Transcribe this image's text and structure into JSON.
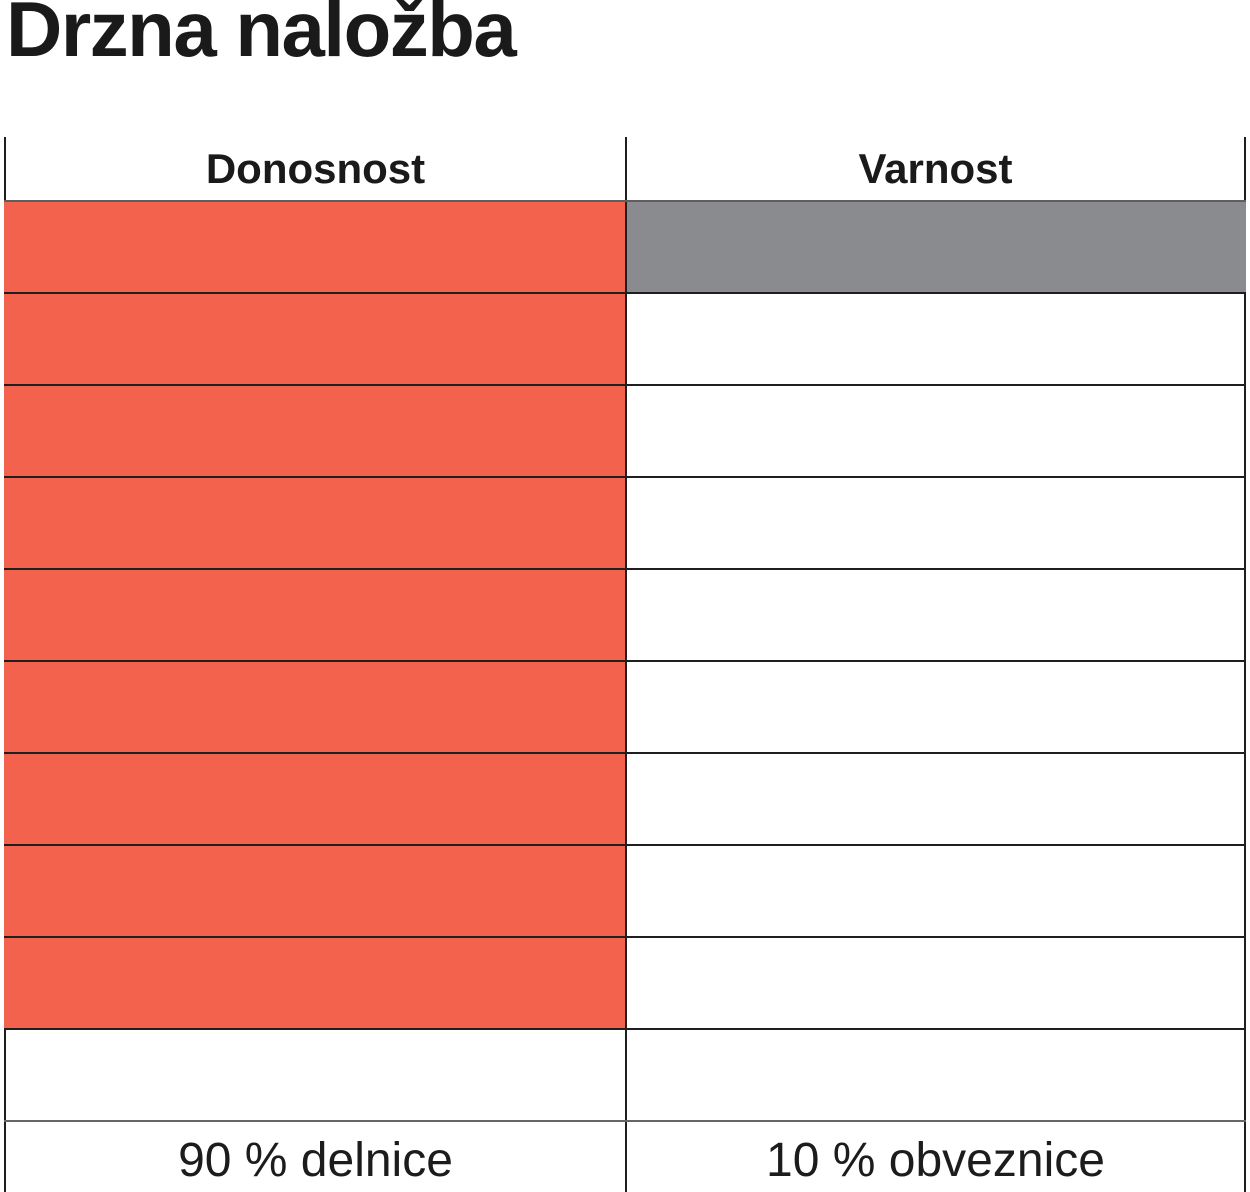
{
  "title": "Drzna naložba",
  "table": {
    "total_rows": 10,
    "columns": [
      {
        "header": "Donosnost",
        "footer_label": "90 % delnice",
        "filled_rows": 9,
        "fill_color": "#F2624C"
      },
      {
        "header": "Varnost",
        "footer_label": "10 % obveznice",
        "filled_rows": 1,
        "fill_color": "#8A8B8E"
      }
    ]
  },
  "chart_data": {
    "type": "bar",
    "title": "Drzna naložba",
    "categories": [
      "Donosnost",
      "Varnost"
    ],
    "values": [
      90,
      10
    ],
    "units": "%",
    "value_labels": [
      "90 % delnice",
      "10 % obveznice"
    ],
    "colors": [
      "#F2624C",
      "#8A8B8E"
    ],
    "ylim": [
      0,
      100
    ],
    "grid_rows_total": 10,
    "filled_rows": [
      9,
      1
    ],
    "legend": false,
    "orientation": "vertical-waffle-columns"
  }
}
